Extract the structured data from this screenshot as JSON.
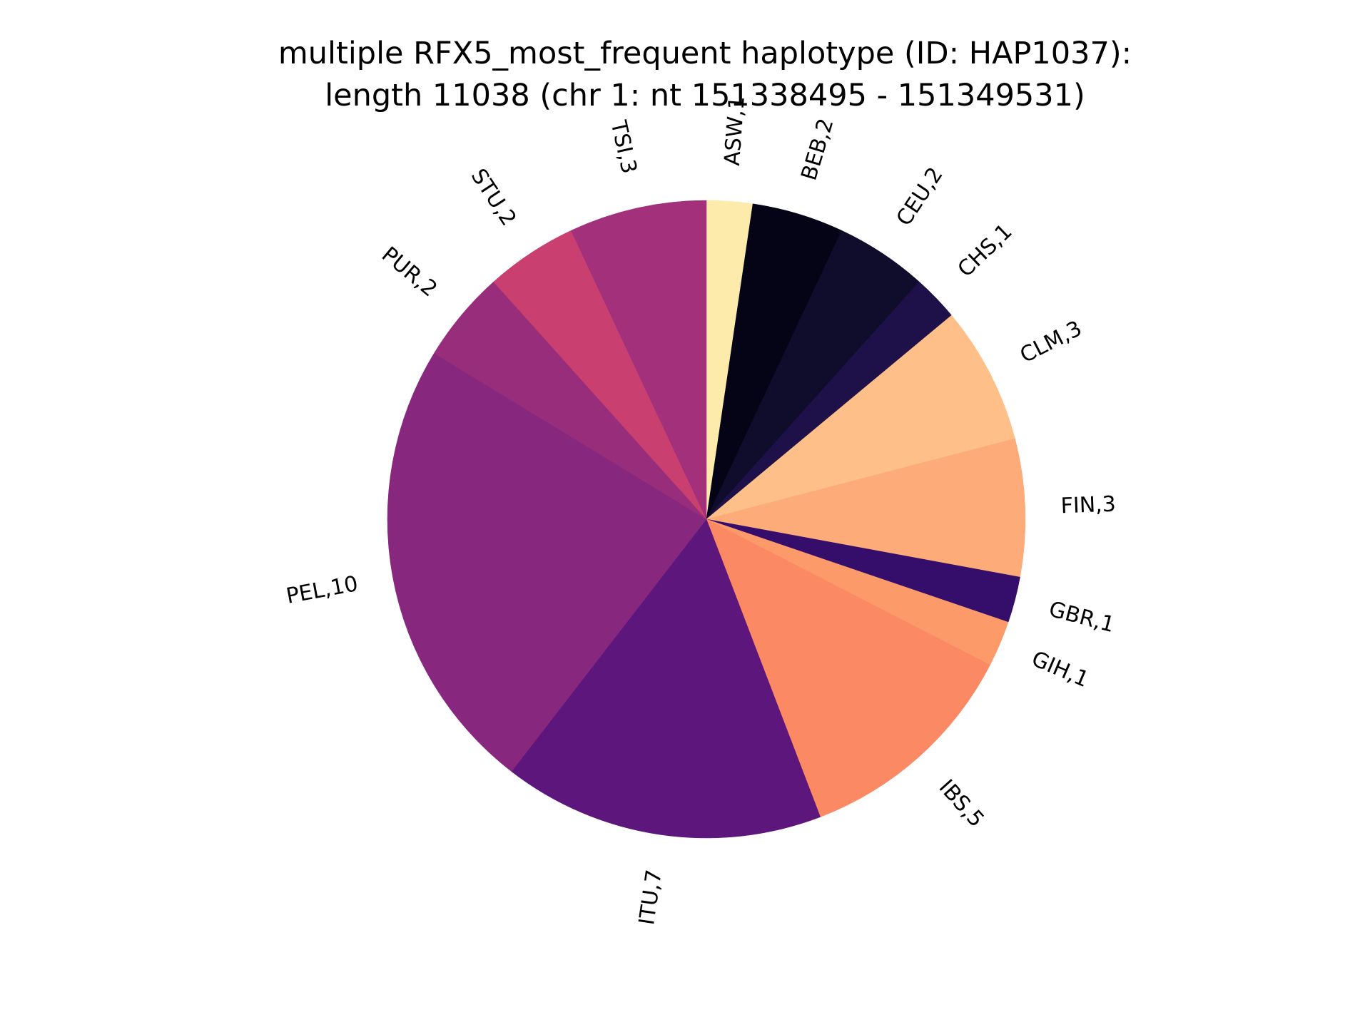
{
  "chart_data": {
    "type": "pie",
    "title": [
      "multiple RFX5_most_frequent haplotype (ID: HAP1037):",
      "length 11038 (chr 1: nt 151338495 - 151349531)"
    ],
    "start_angle_deg": 90,
    "direction": "clockwise",
    "slices": [
      {
        "label": "ASW,1",
        "value": 1,
        "color": "#fcebaa"
      },
      {
        "label": "BEB,2",
        "value": 2,
        "color": "#050417"
      },
      {
        "label": "CEU,2",
        "value": 2,
        "color": "#0f0c2c"
      },
      {
        "label": "CHS,1",
        "value": 1,
        "color": "#1e114a"
      },
      {
        "label": "CLM,3",
        "value": 3,
        "color": "#fec088"
      },
      {
        "label": "FIN,3",
        "value": 3,
        "color": "#fdab78"
      },
      {
        "label": "GBR,1",
        "value": 1,
        "color": "#350e6b"
      },
      {
        "label": "GIH,1",
        "value": 1,
        "color": "#fc9a6a"
      },
      {
        "label": "IBS,5",
        "value": 5,
        "color": "#fb8964"
      },
      {
        "label": "ITU,7",
        "value": 7,
        "color": "#5c167c"
      },
      {
        "label": "PEL,10",
        "value": 10,
        "color": "#87277e"
      },
      {
        "label": "PUR,2",
        "value": 2,
        "color": "#982d7c"
      },
      {
        "label": "STU,2",
        "value": 2,
        "color": "#c83f70"
      },
      {
        "label": "TSI,3",
        "value": 3,
        "color": "#a2307b"
      }
    ]
  }
}
